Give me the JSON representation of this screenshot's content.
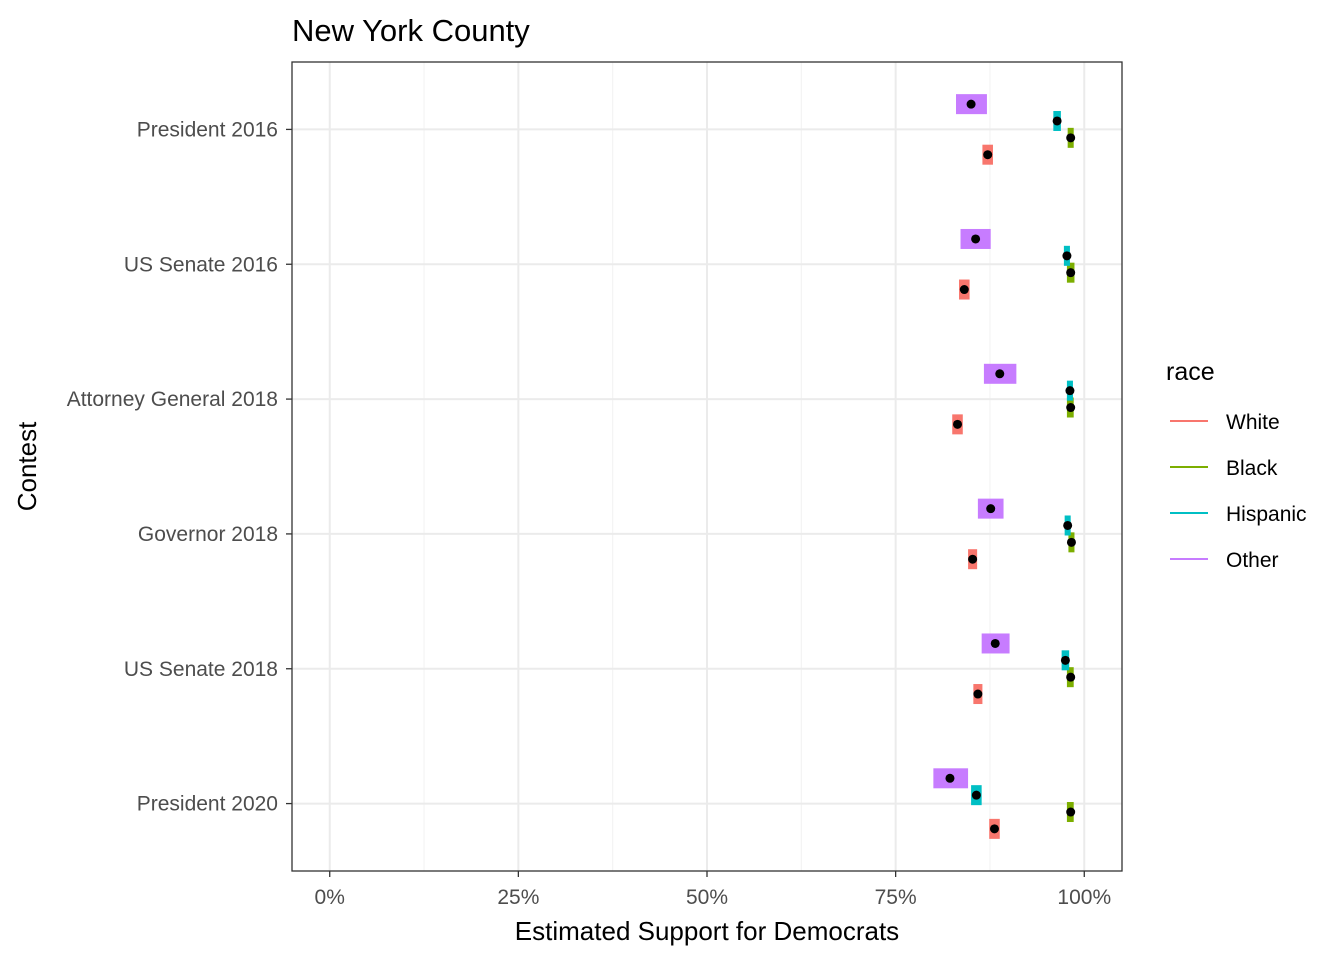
{
  "chart_data": {
    "type": "scatter",
    "title": "New York County",
    "xlabel": "Estimated Support for Democrats",
    "ylabel": "Contest",
    "xlim": [
      -0.05,
      1.05
    ],
    "x_ticks": [
      0,
      0.25,
      0.5,
      0.75,
      1.0
    ],
    "x_tick_labels": [
      "0%",
      "25%",
      "50%",
      "75%",
      "100%"
    ],
    "categories": [
      "President 2016",
      "US Senate 2016",
      "Attorney General 2018",
      "Governor 2018",
      "US Senate 2018",
      "President 2020"
    ],
    "legend": {
      "title": "race",
      "position": "right",
      "entries": [
        {
          "name": "White",
          "color": "#F8766D"
        },
        {
          "name": "Black",
          "color": "#7CAE00"
        },
        {
          "name": "Hispanic",
          "color": "#00BFC4"
        },
        {
          "name": "Other",
          "color": "#C77CFF"
        }
      ]
    },
    "grid": true,
    "series": [
      {
        "name": "White",
        "color": "#F8766D",
        "values": [
          0.872,
          0.841,
          0.832,
          0.852,
          0.859,
          0.881
        ],
        "lower": [
          0.865,
          0.834,
          0.825,
          0.846,
          0.853,
          0.874
        ],
        "upper": [
          0.879,
          0.848,
          0.839,
          0.858,
          0.865,
          0.888
        ]
      },
      {
        "name": "Black",
        "color": "#7CAE00",
        "values": [
          0.982,
          0.982,
          0.982,
          0.983,
          0.982,
          0.982
        ],
        "lower": [
          0.978,
          0.977,
          0.977,
          0.979,
          0.977,
          0.977
        ],
        "upper": [
          0.986,
          0.987,
          0.986,
          0.987,
          0.986,
          0.986
        ]
      },
      {
        "name": "Hispanic",
        "color": "#00BFC4",
        "values": [
          0.964,
          0.977,
          0.981,
          0.978,
          0.975,
          0.857
        ],
        "lower": [
          0.959,
          0.973,
          0.977,
          0.974,
          0.97,
          0.85
        ],
        "upper": [
          0.969,
          0.981,
          0.985,
          0.982,
          0.98,
          0.864
        ]
      },
      {
        "name": "Other",
        "color": "#C77CFF",
        "values": [
          0.85,
          0.856,
          0.888,
          0.876,
          0.882,
          0.822
        ],
        "lower": [
          0.83,
          0.836,
          0.867,
          0.859,
          0.864,
          0.8
        ],
        "upper": [
          0.871,
          0.876,
          0.91,
          0.893,
          0.901,
          0.846
        ]
      }
    ]
  }
}
